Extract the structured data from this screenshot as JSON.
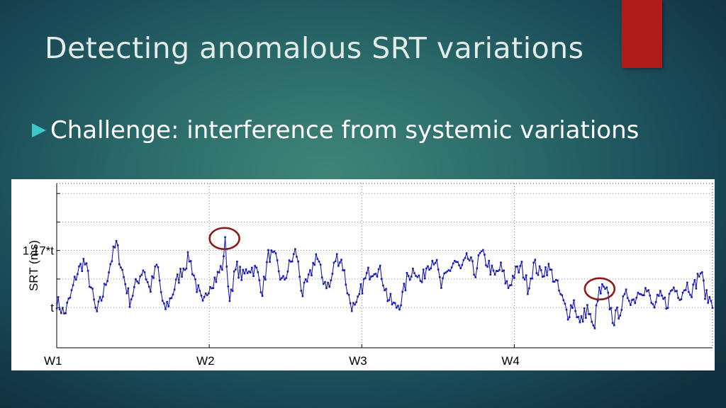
{
  "slide": {
    "title": "Detecting anomalous SRT variations",
    "bullet": "Challenge:  interference from systemic variations",
    "colors": {
      "accent_bar": "#b01c1c",
      "bullet_arrow": "#3fc6c6",
      "title_text": "#e2ece9"
    }
  },
  "chart_data": {
    "type": "line",
    "title": "",
    "xlabel": "",
    "ylabel": "SRT (ms)",
    "x_ticks": [
      "W1",
      "W2",
      "W3",
      "W4"
    ],
    "y_ticks": [
      {
        "value": 1.0,
        "label": "t"
      },
      {
        "value": 1.17,
        "label": "1.17*t"
      }
    ],
    "xlim": [
      0,
      4.3
    ],
    "ylim": [
      0.88,
      1.37
    ],
    "grid": true,
    "series_color": "#1a1ab4",
    "highlight_color": "#8b1a1a",
    "highlights": [
      {
        "x": 1.1,
        "y": 1.21
      },
      {
        "x": 3.56,
        "y": 1.06
      }
    ],
    "series": [
      {
        "anchors": [
          [
            0.0,
            1.02
          ],
          [
            0.05,
            0.98
          ],
          [
            0.09,
            1.03
          ],
          [
            0.13,
            1.1
          ],
          [
            0.18,
            1.14
          ],
          [
            0.22,
            1.07
          ],
          [
            0.26,
            0.98
          ],
          [
            0.31,
            1.05
          ],
          [
            0.35,
            1.13
          ],
          [
            0.39,
            1.19
          ],
          [
            0.44,
            1.09
          ],
          [
            0.48,
            1.02
          ],
          [
            0.53,
            1.08
          ],
          [
            0.57,
            1.12
          ],
          [
            0.61,
            1.05
          ],
          [
            0.66,
            1.13
          ],
          [
            0.7,
            0.99
          ],
          [
            0.74,
            1.02
          ],
          [
            0.79,
            1.08
          ],
          [
            0.83,
            1.12
          ],
          [
            0.87,
            1.15
          ],
          [
            0.92,
            1.06
          ],
          [
            0.96,
            1.0
          ],
          [
            1.0,
            1.07
          ],
          [
            1.05,
            1.09
          ],
          [
            1.09,
            1.13
          ],
          [
            1.13,
            1.03
          ],
          [
            1.18,
            1.12
          ],
          [
            1.22,
            1.09
          ],
          [
            1.26,
            1.12
          ],
          [
            1.31,
            1.11
          ],
          [
            1.35,
            1.05
          ],
          [
            1.39,
            1.16
          ],
          [
            1.44,
            1.14
          ],
          [
            1.48,
            1.07
          ],
          [
            1.53,
            1.13
          ],
          [
            1.57,
            1.17
          ],
          [
            1.61,
            1.04
          ],
          [
            1.66,
            1.09
          ],
          [
            1.7,
            1.16
          ],
          [
            1.74,
            1.09
          ],
          [
            1.79,
            1.06
          ],
          [
            1.83,
            1.15
          ],
          [
            1.87,
            1.14
          ],
          [
            1.92,
            1.02
          ],
          [
            1.96,
            0.99
          ],
          [
            2.0,
            1.06
          ],
          [
            2.04,
            1.1
          ],
          [
            2.09,
            1.12
          ],
          [
            2.13,
            1.1
          ],
          [
            2.17,
            1.03
          ],
          [
            2.22,
            1.0
          ],
          [
            2.26,
            1.02
          ],
          [
            2.3,
            1.09
          ],
          [
            2.35,
            1.12
          ],
          [
            2.39,
            1.07
          ],
          [
            2.43,
            1.13
          ],
          [
            2.48,
            1.15
          ],
          [
            2.52,
            1.06
          ],
          [
            2.56,
            1.1
          ],
          [
            2.61,
            1.14
          ],
          [
            2.65,
            1.11
          ],
          [
            2.7,
            1.15
          ],
          [
            2.74,
            1.1
          ],
          [
            2.78,
            1.16
          ],
          [
            2.83,
            1.13
          ],
          [
            2.87,
            1.09
          ],
          [
            2.91,
            1.12
          ],
          [
            2.96,
            1.06
          ],
          [
            3.0,
            1.1
          ],
          [
            3.05,
            1.12
          ],
          [
            3.09,
            1.06
          ],
          [
            3.13,
            1.13
          ],
          [
            3.17,
            1.1
          ],
          [
            3.22,
            1.12
          ],
          [
            3.26,
            1.09
          ],
          [
            3.3,
            1.04
          ],
          [
            3.35,
            0.98
          ],
          [
            3.39,
            1.02
          ],
          [
            3.43,
            0.95
          ],
          [
            3.48,
            1.0
          ],
          [
            3.52,
            0.93
          ],
          [
            3.56,
            1.06
          ],
          [
            3.61,
            1.04
          ],
          [
            3.65,
            0.96
          ],
          [
            3.7,
            1.0
          ],
          [
            3.74,
            1.04
          ],
          [
            3.78,
            1.02
          ],
          [
            3.83,
            1.06
          ],
          [
            3.87,
            1.05
          ],
          [
            3.91,
            1.0
          ],
          [
            3.96,
            1.03
          ],
          [
            4.0,
            1.01
          ],
          [
            4.04,
            1.06
          ],
          [
            4.09,
            1.04
          ],
          [
            4.13,
            1.07
          ],
          [
            4.17,
            1.05
          ],
          [
            4.22,
            1.11
          ],
          [
            4.26,
            1.03
          ],
          [
            4.3,
            1.02
          ]
        ],
        "peaks": [
          [
            1.1,
            1.21
          ],
          [
            3.56,
            1.06
          ]
        ]
      }
    ]
  }
}
